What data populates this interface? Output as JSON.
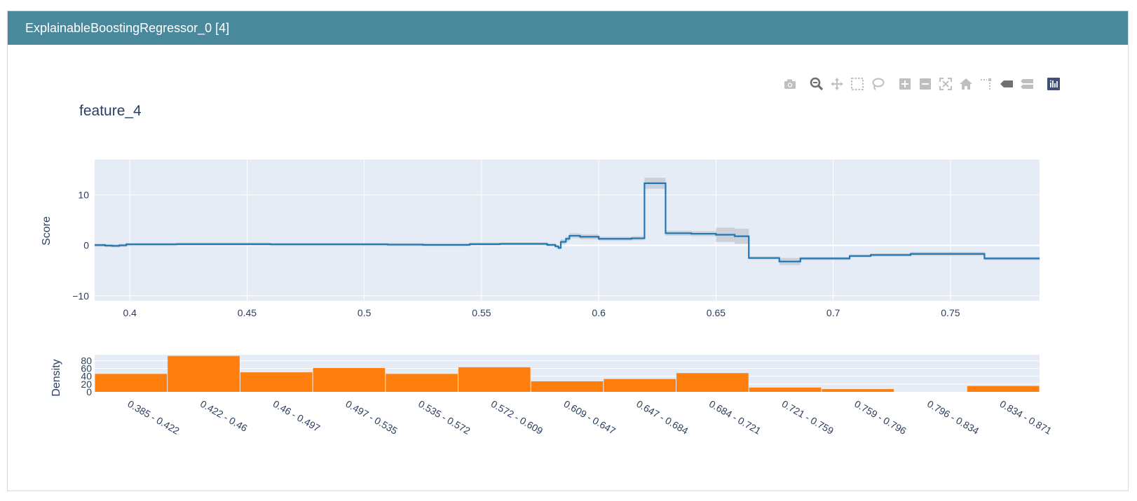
{
  "window": {
    "title": "ExplainableBoostingRegressor_0 [4]"
  },
  "toolbar": {
    "items": [
      {
        "name": "camera-icon",
        "label": "Download plot as a png"
      },
      {
        "name": "zoom-icon",
        "label": "Zoom"
      },
      {
        "name": "pan-icon",
        "label": "Pan"
      },
      {
        "name": "box-select-icon",
        "label": "Box Select"
      },
      {
        "name": "lasso-select-icon",
        "label": "Lasso Select"
      },
      {
        "name": "zoom-in-icon",
        "label": "Zoom in"
      },
      {
        "name": "zoom-out-icon",
        "label": "Zoom out"
      },
      {
        "name": "autoscale-icon",
        "label": "Autoscale"
      },
      {
        "name": "reset-axes-icon",
        "label": "Reset axes"
      },
      {
        "name": "spike-lines-icon",
        "label": "Toggle Spike Lines"
      },
      {
        "name": "hover-closest-icon",
        "label": "Show closest data on hover"
      },
      {
        "name": "hover-compare-icon",
        "label": "Compare data on hover"
      },
      {
        "name": "plotly-logo-icon",
        "label": "Produced with Plotly"
      }
    ]
  },
  "chart_data": [
    {
      "type": "line",
      "title": "feature_4",
      "xlabel": "",
      "ylabel": "Score",
      "xlim": [
        0.385,
        0.788
      ],
      "ylim": [
        -11,
        17
      ],
      "xticks": [
        0.4,
        0.45,
        0.5,
        0.55,
        0.6,
        0.65,
        0.7,
        0.75
      ],
      "xtick_labels": [
        "0.4",
        "0.45",
        "0.5",
        "0.55",
        "0.6",
        "0.65",
        "0.7",
        "0.75"
      ],
      "yticks": [
        -10,
        0,
        10
      ],
      "ytick_labels": [
        "−10",
        "0",
        "10"
      ],
      "grid": true,
      "line_color": "#1f77b4",
      "band_color": "#c8ccd4",
      "steps": [
        [
          0.385,
          0.05,
          0.3
        ],
        [
          0.3895,
          -0.05,
          0.3
        ],
        [
          0.3925,
          -0.1,
          0.3
        ],
        [
          0.3955,
          0.0,
          0.3
        ],
        [
          0.3985,
          0.2,
          0.3
        ],
        [
          0.42,
          0.25,
          0.3
        ],
        [
          0.46,
          0.2,
          0.3
        ],
        [
          0.51,
          0.15,
          0.3
        ],
        [
          0.525,
          0.1,
          0.3
        ],
        [
          0.545,
          0.25,
          0.3
        ],
        [
          0.558,
          0.3,
          0.3
        ],
        [
          0.57,
          0.3,
          0.3
        ],
        [
          0.578,
          0.1,
          0.3
        ],
        [
          0.5815,
          -0.2,
          0.3
        ],
        [
          0.5828,
          -0.5,
          0.3
        ],
        [
          0.5838,
          0.7,
          0.5
        ],
        [
          0.586,
          1.3,
          0.5
        ],
        [
          0.5875,
          1.9,
          0.5
        ],
        [
          0.592,
          1.7,
          0.5
        ],
        [
          0.6,
          1.3,
          0.4
        ],
        [
          0.614,
          1.4,
          0.4
        ],
        [
          0.6195,
          12.3,
          1.1
        ],
        [
          0.6285,
          2.4,
          0.5
        ],
        [
          0.6395,
          2.3,
          0.5
        ],
        [
          0.65,
          2.1,
          1.4
        ],
        [
          0.658,
          1.8,
          1.5
        ],
        [
          0.664,
          -2.5,
          0.3
        ],
        [
          0.677,
          -3.2,
          0.7
        ],
        [
          0.686,
          -2.6,
          0.3
        ],
        [
          0.707,
          -2.1,
          0.3
        ],
        [
          0.716,
          -1.9,
          0.3
        ],
        [
          0.733,
          -1.7,
          0.4
        ],
        [
          0.7645,
          -2.6,
          0.3
        ],
        [
          0.788,
          null,
          null
        ]
      ]
    },
    {
      "type": "bar",
      "ylabel": "Density",
      "ylim": [
        0,
        95
      ],
      "yticks": [
        0,
        20,
        40,
        60,
        80
      ],
      "ytick_labels": [
        "0",
        "20",
        "40",
        "60",
        "80"
      ],
      "bar_color": "#ff7f0e",
      "categories": [
        "0.385 - 0.422",
        "0.422 - 0.46",
        "0.46 - 0.497",
        "0.497 - 0.535",
        "0.535 - 0.572",
        "0.572 - 0.609",
        "0.609 - 0.647",
        "0.647 - 0.684",
        "0.684 - 0.721",
        "0.721 - 0.759",
        "0.759 - 0.796",
        "0.796 - 0.834",
        "0.834 - 0.871"
      ],
      "values": [
        46,
        92,
        50,
        61,
        46,
        63,
        27,
        33,
        48,
        11,
        7,
        0,
        15
      ]
    }
  ]
}
